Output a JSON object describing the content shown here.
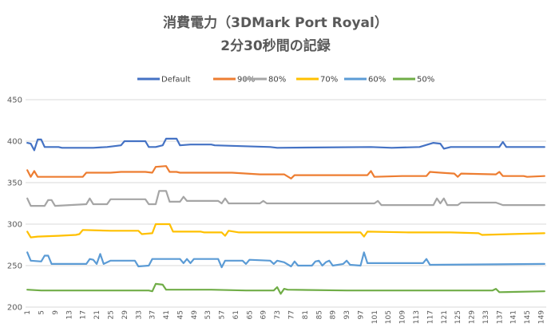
{
  "chart_data": {
    "type": "line",
    "title": "消費電力（3DMark Port Royal）",
    "subtitle": "2分30秒間の記録",
    "xlabel": "",
    "ylabel": "",
    "ylim": [
      200,
      450
    ],
    "yticks": [
      200,
      250,
      300,
      350,
      400,
      450
    ],
    "x_count": 150,
    "x_tick_step": 4,
    "grid": true,
    "legend_position": "top",
    "series": [
      {
        "name": "Default",
        "color": "#4472c4",
        "points": [
          [
            1,
            398
          ],
          [
            2,
            397
          ],
          [
            3,
            389
          ],
          [
            4,
            402
          ],
          [
            5,
            402
          ],
          [
            6,
            393
          ],
          [
            10,
            393
          ],
          [
            11,
            392
          ],
          [
            20,
            392
          ],
          [
            24,
            393
          ],
          [
            28,
            395
          ],
          [
            29,
            400
          ],
          [
            35,
            400
          ],
          [
            36,
            393
          ],
          [
            38,
            393
          ],
          [
            40,
            395
          ],
          [
            41,
            403
          ],
          [
            44,
            403
          ],
          [
            45,
            395
          ],
          [
            48,
            396
          ],
          [
            54,
            396
          ],
          [
            55,
            395
          ],
          [
            71,
            393
          ],
          [
            73,
            392
          ],
          [
            100,
            393
          ],
          [
            106,
            392
          ],
          [
            114,
            393
          ],
          [
            118,
            398
          ],
          [
            120,
            397
          ],
          [
            121,
            391
          ],
          [
            123,
            393
          ],
          [
            137,
            393
          ],
          [
            138,
            399
          ],
          [
            139,
            393
          ],
          [
            150,
            393
          ]
        ]
      },
      {
        "name": "90%",
        "color": "#ed7d31",
        "points": [
          [
            1,
            365
          ],
          [
            2,
            357
          ],
          [
            3,
            364
          ],
          [
            4,
            357
          ],
          [
            17,
            357
          ],
          [
            18,
            362
          ],
          [
            25,
            362
          ],
          [
            28,
            363
          ],
          [
            35,
            363
          ],
          [
            37,
            362
          ],
          [
            38,
            369
          ],
          [
            41,
            370
          ],
          [
            42,
            363
          ],
          [
            44,
            363
          ],
          [
            45,
            362
          ],
          [
            60,
            362
          ],
          [
            68,
            360
          ],
          [
            75,
            360
          ],
          [
            77,
            355
          ],
          [
            78,
            359
          ],
          [
            99,
            359
          ],
          [
            100,
            364
          ],
          [
            101,
            357
          ],
          [
            109,
            358
          ],
          [
            116,
            358
          ],
          [
            117,
            363
          ],
          [
            120,
            362
          ],
          [
            124,
            361
          ],
          [
            125,
            357
          ],
          [
            126,
            361
          ],
          [
            136,
            360
          ],
          [
            137,
            363
          ],
          [
            138,
            358
          ],
          [
            144,
            358
          ],
          [
            145,
            357
          ],
          [
            150,
            358
          ]
        ]
      },
      {
        "name": "80%",
        "color": "#a5a5a5",
        "points": [
          [
            1,
            331
          ],
          [
            2,
            322
          ],
          [
            6,
            322
          ],
          [
            7,
            329
          ],
          [
            8,
            329
          ],
          [
            9,
            322
          ],
          [
            18,
            324
          ],
          [
            19,
            331
          ],
          [
            20,
            324
          ],
          [
            24,
            324
          ],
          [
            25,
            330
          ],
          [
            35,
            330
          ],
          [
            36,
            324
          ],
          [
            38,
            324
          ],
          [
            39,
            340
          ],
          [
            41,
            340
          ],
          [
            42,
            327
          ],
          [
            45,
            327
          ],
          [
            46,
            333
          ],
          [
            47,
            328
          ],
          [
            56,
            328
          ],
          [
            57,
            325
          ],
          [
            58,
            331
          ],
          [
            59,
            325
          ],
          [
            68,
            325
          ],
          [
            69,
            328
          ],
          [
            70,
            325
          ],
          [
            101,
            325
          ],
          [
            102,
            328
          ],
          [
            103,
            323
          ],
          [
            118,
            323
          ],
          [
            119,
            331
          ],
          [
            120,
            325
          ],
          [
            121,
            331
          ],
          [
            122,
            323
          ],
          [
            125,
            323
          ],
          [
            126,
            326
          ],
          [
            136,
            326
          ],
          [
            138,
            323
          ],
          [
            150,
            323
          ]
        ]
      },
      {
        "name": "70%",
        "color": "#ffc000",
        "points": [
          [
            1,
            291
          ],
          [
            2,
            284
          ],
          [
            4,
            285
          ],
          [
            10,
            286
          ],
          [
            15,
            287
          ],
          [
            16,
            288
          ],
          [
            17,
            293
          ],
          [
            25,
            292
          ],
          [
            33,
            292
          ],
          [
            34,
            288
          ],
          [
            37,
            289
          ],
          [
            38,
            300
          ],
          [
            42,
            300
          ],
          [
            43,
            291
          ],
          [
            51,
            291
          ],
          [
            52,
            290
          ],
          [
            57,
            290
          ],
          [
            58,
            286
          ],
          [
            59,
            292
          ],
          [
            62,
            290
          ],
          [
            97,
            290
          ],
          [
            98,
            285
          ],
          [
            99,
            291
          ],
          [
            111,
            290
          ],
          [
            123,
            290
          ],
          [
            131,
            289
          ],
          [
            132,
            287
          ],
          [
            150,
            289
          ]
        ]
      },
      {
        "name": "60%",
        "color": "#5b9bd5",
        "points": [
          [
            1,
            266
          ],
          [
            2,
            256
          ],
          [
            5,
            255
          ],
          [
            6,
            262
          ],
          [
            7,
            262
          ],
          [
            8,
            252
          ],
          [
            18,
            252
          ],
          [
            19,
            258
          ],
          [
            20,
            257
          ],
          [
            21,
            252
          ],
          [
            22,
            264
          ],
          [
            23,
            252
          ],
          [
            25,
            256
          ],
          [
            32,
            256
          ],
          [
            33,
            249
          ],
          [
            36,
            250
          ],
          [
            37,
            258
          ],
          [
            45,
            258
          ],
          [
            46,
            253
          ],
          [
            47,
            258
          ],
          [
            48,
            253
          ],
          [
            49,
            258
          ],
          [
            56,
            258
          ],
          [
            57,
            248
          ],
          [
            58,
            256
          ],
          [
            63,
            256
          ],
          [
            64,
            252
          ],
          [
            65,
            257
          ],
          [
            71,
            256
          ],
          [
            72,
            252
          ],
          [
            73,
            256
          ],
          [
            75,
            254
          ],
          [
            77,
            249
          ],
          [
            78,
            255
          ],
          [
            79,
            250
          ],
          [
            83,
            250
          ],
          [
            84,
            255
          ],
          [
            85,
            256
          ],
          [
            86,
            250
          ],
          [
            87,
            254
          ],
          [
            88,
            256
          ],
          [
            89,
            250
          ],
          [
            92,
            252
          ],
          [
            93,
            256
          ],
          [
            94,
            251
          ],
          [
            97,
            250
          ],
          [
            98,
            266
          ],
          [
            99,
            253
          ],
          [
            100,
            253
          ],
          [
            115,
            253
          ],
          [
            116,
            258
          ],
          [
            117,
            251
          ],
          [
            150,
            252
          ]
        ]
      },
      {
        "name": "50%",
        "color": "#70ad47",
        "points": [
          [
            1,
            221
          ],
          [
            5,
            220
          ],
          [
            36,
            220
          ],
          [
            37,
            219
          ],
          [
            38,
            228
          ],
          [
            40,
            227
          ],
          [
            41,
            221
          ],
          [
            44,
            221
          ],
          [
            54,
            221
          ],
          [
            64,
            220
          ],
          [
            72,
            220
          ],
          [
            73,
            224
          ],
          [
            74,
            216
          ],
          [
            75,
            222
          ],
          [
            76,
            221
          ],
          [
            93,
            220
          ],
          [
            135,
            220
          ],
          [
            136,
            222
          ],
          [
            137,
            218
          ],
          [
            150,
            219
          ]
        ]
      }
    ]
  }
}
